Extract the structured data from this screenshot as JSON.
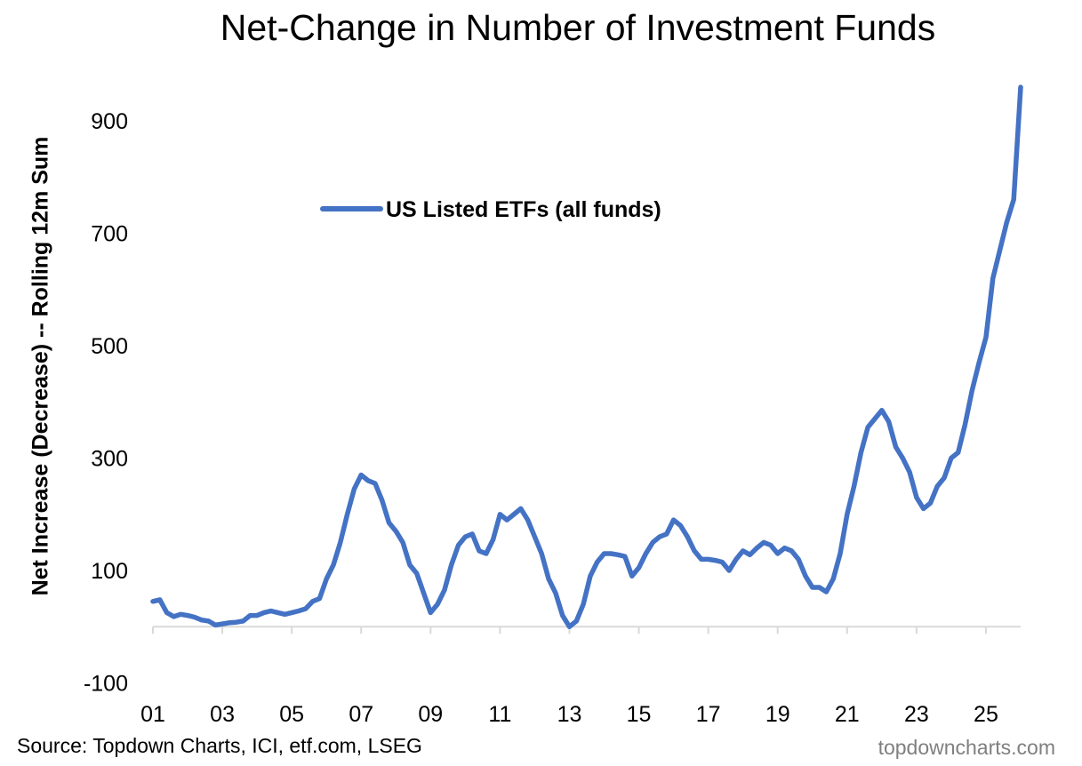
{
  "chart_data": {
    "type": "line",
    "title": "Net-Change in Number of Investment Funds",
    "xlabel": "",
    "ylabel": "Net Increase (Decrease) -- Rolling 12m Sum",
    "ylim": [
      -100,
      900
    ],
    "xlim": [
      2001,
      2026
    ],
    "yticks": [
      "900",
      "700",
      "500",
      "300",
      "100",
      "-100"
    ],
    "ytick_values": [
      900,
      700,
      500,
      300,
      100,
      -100
    ],
    "xticks": [
      "01",
      "03",
      "05",
      "07",
      "09",
      "11",
      "13",
      "15",
      "17",
      "19",
      "21",
      "23",
      "25"
    ],
    "xtick_values": [
      2001,
      2003,
      2005,
      2007,
      2009,
      2011,
      2013,
      2015,
      2017,
      2019,
      2021,
      2023,
      2025
    ],
    "legend_position": "top-center",
    "series": [
      {
        "name": "US Listed ETFs (all funds)",
        "color": "#4472c4",
        "x": [
          2001.0,
          2001.2,
          2001.4,
          2001.6,
          2001.8,
          2002.0,
          2002.2,
          2002.4,
          2002.6,
          2002.8,
          2003.0,
          2003.2,
          2003.4,
          2003.6,
          2003.8,
          2004.0,
          2004.2,
          2004.4,
          2004.6,
          2004.8,
          2005.0,
          2005.2,
          2005.4,
          2005.6,
          2005.8,
          2006.0,
          2006.2,
          2006.4,
          2006.6,
          2006.8,
          2007.0,
          2007.2,
          2007.4,
          2007.6,
          2007.8,
          2008.0,
          2008.2,
          2008.4,
          2008.6,
          2008.8,
          2009.0,
          2009.2,
          2009.4,
          2009.6,
          2009.8,
          2010.0,
          2010.2,
          2010.4,
          2010.6,
          2010.8,
          2011.0,
          2011.2,
          2011.4,
          2011.6,
          2011.8,
          2012.0,
          2012.2,
          2012.4,
          2012.6,
          2012.8,
          2013.0,
          2013.2,
          2013.4,
          2013.6,
          2013.8,
          2014.0,
          2014.2,
          2014.4,
          2014.6,
          2014.8,
          2015.0,
          2015.2,
          2015.4,
          2015.6,
          2015.8,
          2016.0,
          2016.2,
          2016.4,
          2016.6,
          2016.8,
          2017.0,
          2017.2,
          2017.4,
          2017.6,
          2017.8,
          2018.0,
          2018.2,
          2018.4,
          2018.6,
          2018.8,
          2019.0,
          2019.2,
          2019.4,
          2019.6,
          2019.8,
          2020.0,
          2020.2,
          2020.4,
          2020.6,
          2020.8,
          2021.0,
          2021.2,
          2021.4,
          2021.6,
          2021.8,
          2022.0,
          2022.2,
          2022.4,
          2022.6,
          2022.8,
          2023.0,
          2023.2,
          2023.4,
          2023.6,
          2023.8,
          2024.0,
          2024.2,
          2024.4,
          2024.6,
          2024.8,
          2025.0,
          2025.2,
          2025.4,
          2025.6,
          2025.8,
          2026.0
        ],
        "values": [
          45,
          48,
          25,
          18,
          22,
          20,
          17,
          12,
          10,
          3,
          5,
          7,
          8,
          10,
          20,
          20,
          25,
          28,
          25,
          22,
          25,
          28,
          32,
          45,
          50,
          85,
          110,
          150,
          200,
          245,
          270,
          260,
          255,
          225,
          185,
          170,
          150,
          110,
          95,
          60,
          25,
          40,
          65,
          110,
          145,
          160,
          165,
          135,
          130,
          155,
          200,
          190,
          200,
          210,
          190,
          160,
          130,
          85,
          60,
          20,
          0,
          10,
          40,
          90,
          115,
          130,
          130,
          128,
          125,
          90,
          105,
          130,
          150,
          160,
          165,
          190,
          180,
          160,
          135,
          120,
          120,
          118,
          115,
          100,
          120,
          135,
          128,
          140,
          150,
          145,
          130,
          140,
          135,
          120,
          90,
          70,
          70,
          62,
          85,
          130,
          200,
          250,
          310,
          355,
          370,
          385,
          365,
          320,
          300,
          275,
          230,
          210,
          220,
          250,
          265,
          300,
          310,
          360,
          420,
          470,
          515,
          620,
          670,
          720,
          760,
          960
        ]
      }
    ]
  },
  "footer": {
    "source": "Source: Topdown Charts, ICI, etf.com, LSEG",
    "watermark": "topdowncharts.com"
  }
}
